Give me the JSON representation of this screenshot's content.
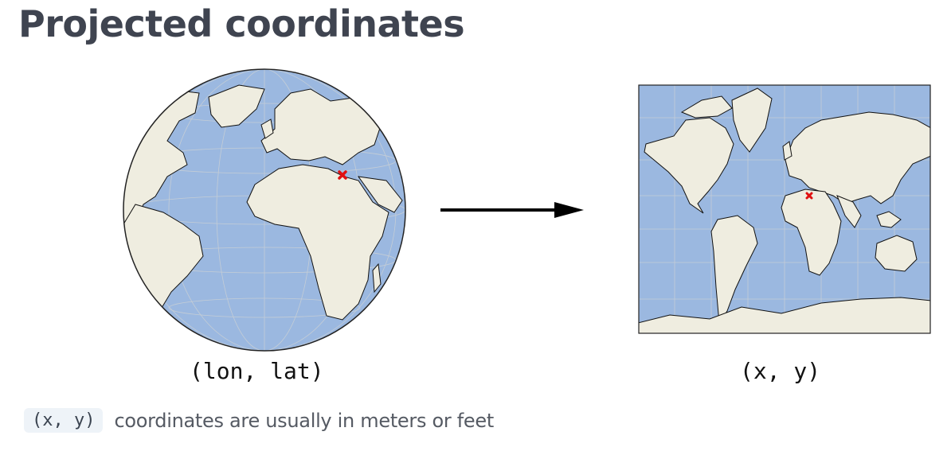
{
  "title": "Projected coordinates",
  "globe": {
    "caption": "(lon, lat)",
    "ocean_color": "#9bb8e0",
    "land_color": "#efede0",
    "marker_color": "#e01010"
  },
  "map": {
    "caption": "(x, y)",
    "ocean_color": "#9bb8e0",
    "land_color": "#efede0",
    "marker_color": "#e01010"
  },
  "note": {
    "code": "(x, y)",
    "text": "coordinates are usually in meters or feet"
  },
  "icons": [
    "globe-icon",
    "arrow-right-icon",
    "world-map-icon",
    "marker-x-icon"
  ]
}
